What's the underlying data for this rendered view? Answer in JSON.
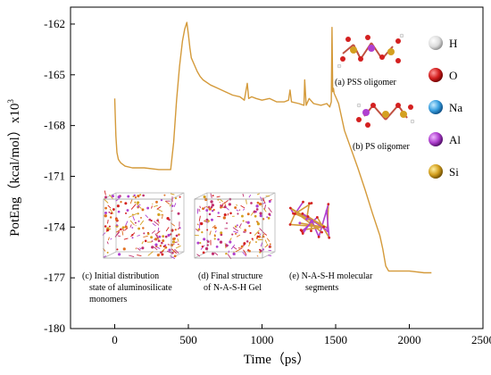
{
  "chart_data": {
    "type": "line",
    "title": "",
    "xlabel": "Time（ps）",
    "ylabel": "PotEng（kcal/mol）x10",
    "ylabel_exponent": "3",
    "xlim": [
      -300,
      2500
    ],
    "ylim": [
      -180,
      -161
    ],
    "xticks": [
      0,
      500,
      1000,
      1500,
      2000,
      2500
    ],
    "yticks": [
      -162,
      -165,
      -168,
      -171,
      -174,
      -177,
      -180
    ],
    "grid": false,
    "line_color": "#d49a3a",
    "series": [
      {
        "name": "",
        "x": [
          0,
          8,
          15,
          25,
          40,
          70,
          120,
          200,
          300,
          380,
          400,
          420,
          440,
          460,
          475,
          490,
          500,
          510,
          520,
          540,
          560,
          580,
          600,
          650,
          700,
          750,
          800,
          850,
          880,
          900,
          910,
          930,
          960,
          1000,
          1050,
          1100,
          1150,
          1180,
          1190,
          1200,
          1250,
          1285,
          1290,
          1300,
          1320,
          1350,
          1400,
          1440,
          1460,
          1470,
          1475,
          1480,
          1485,
          1490,
          1500,
          1520,
          1560,
          1650,
          1700,
          1750,
          1800,
          1820,
          1840,
          1860,
          1900,
          2000,
          2100,
          2150
        ],
        "y": [
          -166.4,
          -168.6,
          -169.6,
          -170.0,
          -170.2,
          -170.4,
          -170.5,
          -170.5,
          -170.6,
          -170.6,
          -169.0,
          -166.5,
          -164.5,
          -163.0,
          -162.3,
          -161.9,
          -162.6,
          -163.4,
          -164.0,
          -164.4,
          -164.8,
          -165.1,
          -165.3,
          -165.6,
          -165.8,
          -166.0,
          -166.2,
          -166.3,
          -166.5,
          -165.5,
          -166.4,
          -166.3,
          -166.4,
          -166.5,
          -166.4,
          -166.6,
          -166.6,
          -166.5,
          -165.9,
          -166.6,
          -166.7,
          -166.8,
          -165.3,
          -166.8,
          -166.4,
          -166.7,
          -166.8,
          -166.7,
          -166.9,
          -166.6,
          -162.2,
          -166.0,
          -165.8,
          -166.1,
          -166.3,
          -166.7,
          -168.3,
          -170.5,
          -171.8,
          -173.2,
          -174.5,
          -175.3,
          -176.3,
          -176.6,
          -176.6,
          -176.6,
          -176.7,
          -176.7
        ]
      }
    ]
  },
  "annotations": {
    "pss_oligomer": "(a) PSS oligomer",
    "ps_oligomer": "(b) PS oligomer",
    "panel_c": [
      "(c)  Initial  distribution",
      "state of aluminosilicate",
      "monomers"
    ],
    "panel_d": [
      "(d) Final structure",
      "of N-A-S-H Gel"
    ],
    "panel_e": [
      "(e) N-A-S-H molecular",
      "segments"
    ]
  },
  "legend": [
    {
      "label": "H",
      "color": "#e8e8e8"
    },
    {
      "label": "O",
      "color": "#d42020"
    },
    {
      "label": "Na",
      "color": "#3aa0e0"
    },
    {
      "label": "Al",
      "color": "#b040d0"
    },
    {
      "label": "Si",
      "color": "#d4a020"
    }
  ]
}
